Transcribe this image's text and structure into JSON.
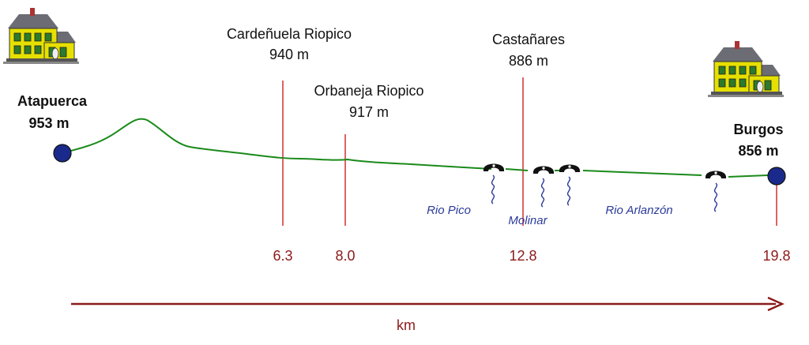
{
  "start": {
    "name": "Atapuerca",
    "elevation": "953 m"
  },
  "end": {
    "name": "Burgos",
    "elevation": "856 m"
  },
  "waypoints": [
    {
      "name": "Cardeñuela Riopico",
      "elevation": "940 m",
      "km": "6.3"
    },
    {
      "name": "Orbaneja Riopico",
      "elevation": "917 m",
      "km": "8.0"
    },
    {
      "name": "Castañares",
      "elevation": "886 m",
      "km": "12.8"
    }
  ],
  "end_km": "19.8",
  "rivers": [
    "Rio Pico",
    "Molinar",
    "Rio Arlanzón"
  ],
  "axis_label": "km",
  "colors": {
    "profile": "#1a8a1a",
    "marker": "#cc2222",
    "km_text": "#8b1a1a",
    "axis": "#8b1a1a",
    "river_text": "#2a3a9a",
    "endpoint": "#1a2a8c"
  },
  "icons": [
    "house-icon",
    "bridge-icon",
    "river-wave-icon"
  ]
}
